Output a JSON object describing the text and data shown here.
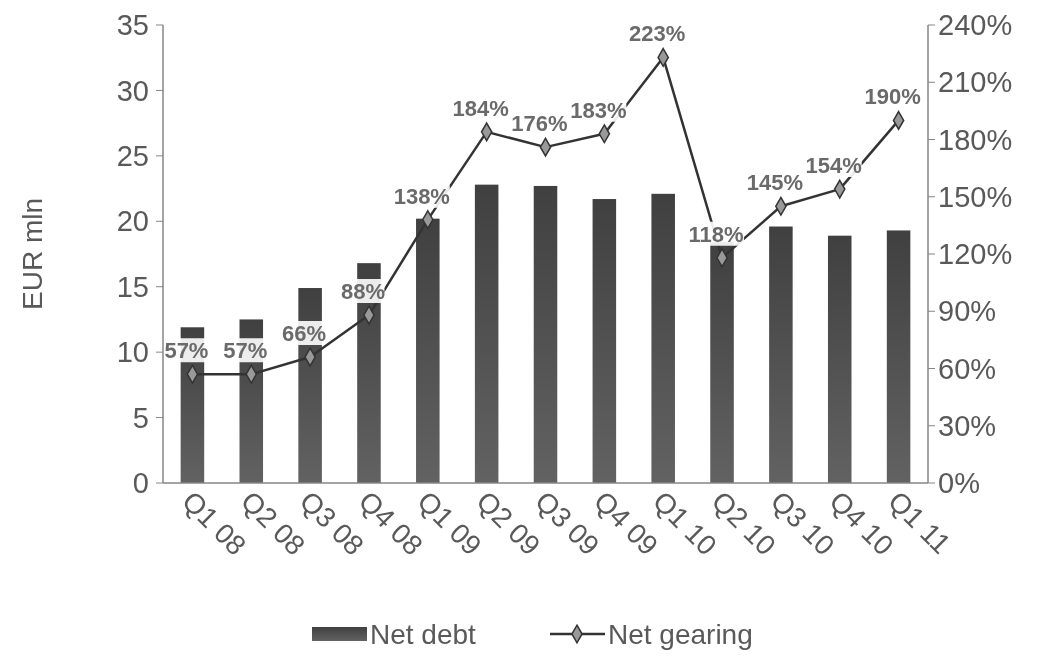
{
  "chart_data": {
    "type": "bar",
    "ylabel": "EUR mln",
    "categories": [
      "Q1 08",
      "Q2 08",
      "Q3 08",
      "Q4 08",
      "Q1 09",
      "Q2 09",
      "Q3 09",
      "Q4 09",
      "Q1 10",
      "Q2 10",
      "Q3 10",
      "Q4 10",
      "Q1 11"
    ],
    "series": [
      {
        "name": "Net debt",
        "color": "#404040",
        "values": [
          11.9,
          12.5,
          14.9,
          16.8,
          20.2,
          22.8,
          22.7,
          21.7,
          22.1,
          18.4,
          19.6,
          18.9,
          19.3
        ]
      },
      {
        "name": "Net gearing",
        "type": "line",
        "axis": "y2",
        "color": "#333333",
        "marker": "diamond",
        "values": [
          57,
          57,
          66,
          88,
          138,
          184,
          176,
          183,
          223,
          118,
          145,
          154,
          190
        ],
        "value_labels": [
          "57%",
          "57%",
          "66%",
          "88%",
          "138%",
          "184%",
          "176%",
          "183%",
          "223%",
          "118%",
          "145%",
          "154%",
          "190%"
        ]
      }
    ],
    "ylim": [
      0,
      35
    ],
    "yticks": [
      0,
      5,
      10,
      15,
      20,
      25,
      30,
      35
    ],
    "y2lim": [
      0,
      240
    ],
    "y2ticks": [
      {
        "value": 0,
        "label": "0%"
      },
      {
        "value": 30,
        "label": "30%"
      },
      {
        "value": 60,
        "label": "60%"
      },
      {
        "value": 90,
        "label": "90%"
      },
      {
        "value": 120,
        "label": "120%"
      },
      {
        "value": 150,
        "label": "150%"
      },
      {
        "value": 180,
        "label": "180%"
      },
      {
        "value": 210,
        "label": "210%"
      },
      {
        "value": 240,
        "label": "240%"
      }
    ],
    "grid": false,
    "legend": "bottom"
  }
}
